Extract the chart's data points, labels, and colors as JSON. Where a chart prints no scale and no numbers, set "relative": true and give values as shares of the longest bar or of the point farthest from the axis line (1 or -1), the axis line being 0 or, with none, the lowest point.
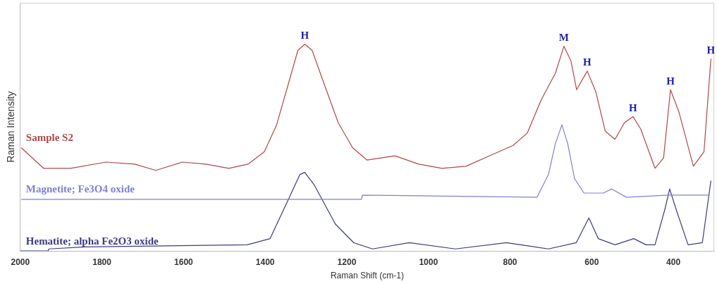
{
  "chart_data": {
    "type": "line",
    "relative": true,
    "xlabel": "Raman Shift (cm-1)",
    "ylabel": "Raman Intensity",
    "xlim": [
      2000,
      300
    ],
    "xticks": [
      2000,
      1800,
      1600,
      1400,
      1200,
      1000,
      800,
      600,
      400
    ],
    "grid": false,
    "legend": false,
    "marker": "none",
    "line_style": "solid",
    "series": [
      {
        "name": "Sample S2",
        "color": "#b04848",
        "x": [
          1998,
          1943,
          1877,
          1790,
          1720,
          1668,
          1603,
          1546,
          1489,
          1442,
          1402,
          1372,
          1343,
          1320,
          1303,
          1285,
          1256,
          1221,
          1186,
          1151,
          1082,
          1024,
          967,
          908,
          851,
          793,
          758,
          724,
          689,
          668,
          651,
          637,
          611,
          590,
          567,
          543,
          520,
          499,
          480,
          445,
          424,
          407,
          386,
          351,
          325,
          308
        ],
        "values": [
          0.5,
          0.4,
          0.4,
          0.43,
          0.42,
          0.39,
          0.43,
          0.42,
          0.4,
          0.42,
          0.48,
          0.61,
          0.81,
          0.97,
          1.0,
          0.97,
          0.81,
          0.62,
          0.5,
          0.44,
          0.46,
          0.42,
          0.4,
          0.41,
          0.46,
          0.51,
          0.57,
          0.73,
          0.86,
          0.99,
          0.92,
          0.78,
          0.87,
          0.77,
          0.58,
          0.54,
          0.62,
          0.65,
          0.59,
          0.4,
          0.45,
          0.78,
          0.67,
          0.41,
          0.48,
          0.93
        ]
      },
      {
        "name": "Magnetite; Fe3O4 oxide",
        "color": "#8080d0",
        "x": [
          1998,
          1164,
          1162,
          734,
          706,
          689,
          673,
          659,
          642,
          619,
          572,
          551,
          515,
          411,
          311
        ],
        "values": [
          0.25,
          0.25,
          0.27,
          0.26,
          0.37,
          0.52,
          0.61,
          0.52,
          0.35,
          0.28,
          0.28,
          0.3,
          0.26,
          0.27,
          0.27
        ]
      },
      {
        "name": "Hematite; alpha Fe2O3 oxide",
        "color": "#3b3b80",
        "x": [
          2000,
          1932,
          1930,
          1842,
          1444,
          1388,
          1343,
          1315,
          1303,
          1280,
          1228,
          1183,
          1137,
          1047,
          934,
          809,
          706,
          638,
          607,
          584,
          543,
          497,
          467,
          445,
          421,
          409,
          393,
          364,
          329,
          308
        ],
        "values": [
          0.0,
          0.0,
          0.01,
          0.02,
          0.03,
          0.06,
          0.25,
          0.37,
          0.38,
          0.32,
          0.13,
          0.04,
          0.01,
          0.04,
          0.01,
          0.04,
          0.01,
          0.04,
          0.16,
          0.06,
          0.03,
          0.06,
          0.03,
          0.03,
          0.2,
          0.3,
          0.2,
          0.03,
          0.04,
          0.34
        ]
      }
    ],
    "annotations": [
      {
        "text": "H",
        "x": 1303,
        "y": 1.0
      },
      {
        "text": "M",
        "x": 668,
        "y": 0.99
      },
      {
        "text": "H",
        "x": 611,
        "y": 0.87
      },
      {
        "text": "H",
        "x": 499,
        "y": 0.65
      },
      {
        "text": "H",
        "x": 407,
        "y": 0.78
      },
      {
        "text": "H",
        "x": 308,
        "y": 0.93
      }
    ]
  }
}
